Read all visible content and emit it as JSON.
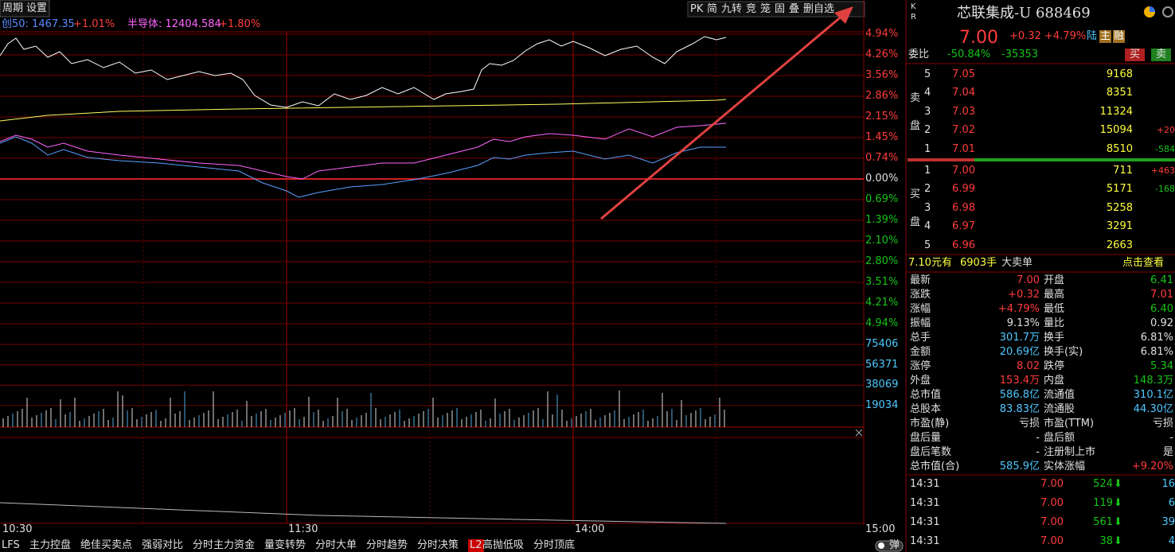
{
  "toolbar": {
    "left": [
      "周期",
      "设置"
    ],
    "right": [
      "PK",
      "简",
      "九转",
      "竞",
      "笼",
      "固",
      "叠",
      "删自选"
    ]
  },
  "indices": [
    {
      "name": "创50: 1467.35",
      "change": "+1.01%"
    },
    {
      "name": "半导体: 12404.584",
      "change": "+1.80%"
    }
  ],
  "price_axis": [
    "4.94%",
    "4.26%",
    "3.56%",
    "2.86%",
    "2.15%",
    "1.45%",
    "0.74%",
    "0.00%",
    "0.69%",
    "1.39%",
    "2.10%",
    "2.80%",
    "3.51%",
    "4.21%",
    "4.94%"
  ],
  "volume_axis": [
    "75406",
    "56371",
    "38069",
    "19034"
  ],
  "time_axis": [
    "10:30",
    "11:30",
    "14:00",
    "15:00"
  ],
  "tabs": [
    "LFS",
    "主力控盘",
    "绝佳买卖点",
    "强弱对比",
    "分时主力资金",
    "量变转势",
    "分时大单",
    "分时趋势",
    "分时决策"
  ],
  "l2_badge": "L2",
  "tabs_l2": [
    "高抛低吸",
    "分时顶底"
  ],
  "toggle": "弹",
  "quote": {
    "kr": [
      "K",
      "R"
    ],
    "name": "芯联集成-U 688469",
    "price": "7.00",
    "change": "+0.32",
    "pct": "+4.79%",
    "tags": [
      "陆",
      "主",
      "融"
    ],
    "ratio_label": "委比",
    "ratio": "-50.84%",
    "ratio_diff": "-35353",
    "buttons": [
      "买",
      "卖"
    ],
    "ask_label": [
      "卖",
      "盘"
    ],
    "asks": [
      [
        "5",
        "7.05",
        "9168"
      ],
      [
        "4",
        "7.04",
        "8351"
      ],
      [
        "3",
        "7.03",
        "11324"
      ],
      [
        "2",
        "7.02",
        "15094",
        "+20"
      ],
      [
        "1",
        "7.01",
        "8510",
        "-584"
      ]
    ],
    "bid_label": [
      "买",
      "盘"
    ],
    "bids": [
      [
        "1",
        "7.00",
        "711",
        "+463"
      ],
      [
        "2",
        "6.99",
        "5171",
        "-168"
      ],
      [
        "3",
        "6.98",
        "5258"
      ],
      [
        "4",
        "6.97",
        "3291"
      ],
      [
        "5",
        "6.96",
        "2663"
      ]
    ],
    "big_order": [
      "7.10元有",
      "6903手",
      "大卖单"
    ],
    "big_order_link": "点击查看",
    "stats": [
      [
        "最新",
        "7.00",
        "开盘",
        "6.41"
      ],
      [
        "涨跌",
        "+0.32",
        "最高",
        "7.01"
      ],
      [
        "涨幅",
        "+4.79%",
        "最低",
        "6.40"
      ],
      [
        "振幅",
        "9.13%",
        "量比",
        "0.92"
      ],
      [
        "总手",
        "301.7万",
        "换手",
        "6.81%"
      ],
      [
        "金额",
        "20.69亿",
        "换手(实)",
        "6.81%"
      ],
      [
        "涨停",
        "8.02",
        "跌停",
        "5.34"
      ],
      [
        "外盘",
        "153.4万",
        "内盘",
        "148.3万"
      ],
      [
        "总市值",
        "586.8亿",
        "流通值",
        "310.1亿"
      ],
      [
        "总股本",
        "83.83亿",
        "流通股",
        "44.30亿"
      ],
      [
        "市盈(静)",
        "亏损",
        "市盈(TTM)",
        "亏损"
      ],
      [
        "盘后量",
        "-",
        "盘后额",
        "-"
      ],
      [
        "盘后笔数",
        "-",
        "注册制上市",
        "是"
      ],
      [
        "总市值(合)",
        "585.9亿",
        "实体涨幅",
        "+9.20%"
      ]
    ],
    "trades": [
      [
        "14:31",
        "7.00",
        "524",
        "16"
      ],
      [
        "14:31",
        "7.00",
        "119",
        "6"
      ],
      [
        "14:31",
        "7.00",
        "561",
        "39"
      ],
      [
        "14:31",
        "7.00",
        "38",
        "4"
      ]
    ]
  }
}
